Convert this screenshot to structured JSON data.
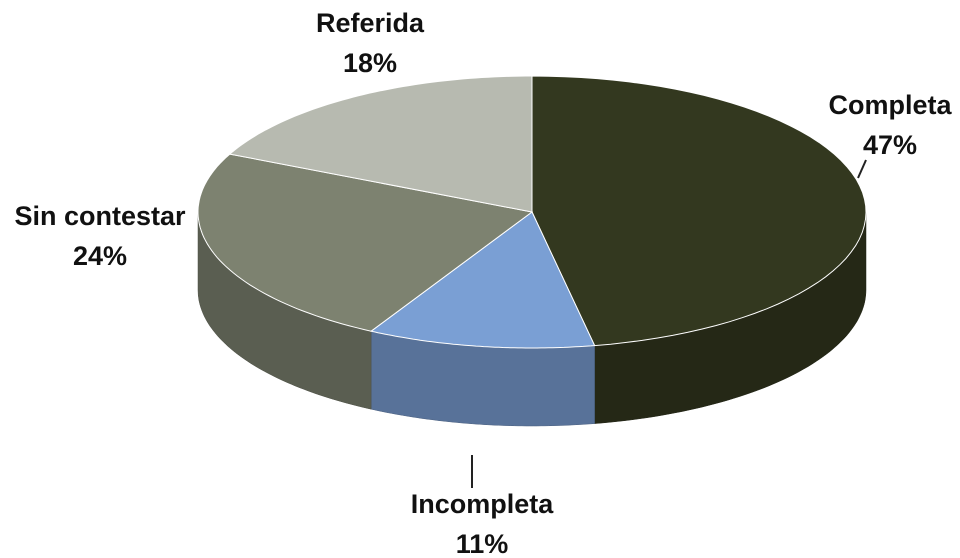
{
  "chart_data": {
    "type": "pie",
    "categories": [
      "Completa",
      "Incompleta",
      "Sin contestar",
      "Referida"
    ],
    "values": [
      47,
      11,
      24,
      18
    ],
    "value_labels": [
      "47%",
      "11%",
      "24%",
      "18%"
    ],
    "colors": [
      "#33381f",
      "#7a9fd4",
      "#7d8270",
      "#b7bab0"
    ],
    "three_d": true
  }
}
